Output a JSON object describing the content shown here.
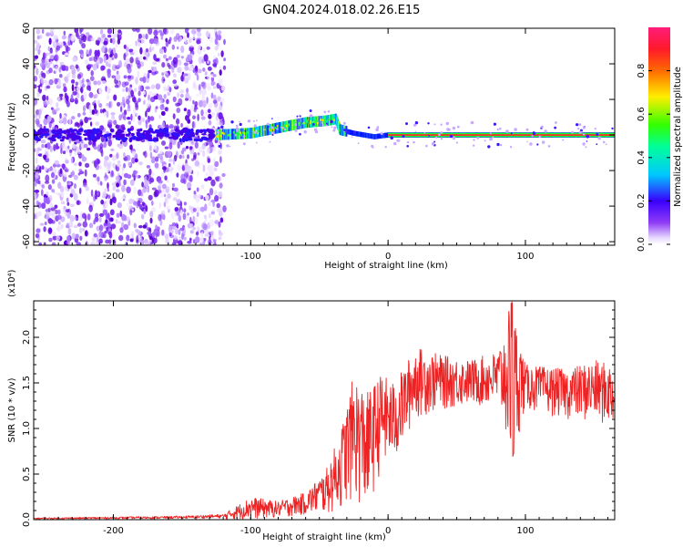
{
  "figure": {
    "title": "GN04.2024.018.02.26.E15"
  },
  "chart_data": [
    {
      "type": "heatmap",
      "xlabel": "Height of straight line (km)",
      "ylabel": "Frequency (Hz)",
      "xlim": [
        -258,
        165
      ],
      "ylim": [
        -62,
        60
      ],
      "xticks": [
        -200,
        -100,
        0,
        100
      ],
      "yticks": [
        -60,
        -40,
        -20,
        0,
        20,
        40,
        60
      ],
      "colorbar": {
        "label": "Normalized spectral amplitude",
        "range": [
          0,
          1
        ],
        "ticks": [
          0.0,
          0.2,
          0.4,
          0.6,
          0.8
        ],
        "colormap": "rainbow (purple → blue → cyan → green → yellow → red → magenta)"
      },
      "noise_region_x": [
        -258,
        -125
      ],
      "signal_track": [
        {
          "x": -125,
          "y": 0
        },
        {
          "x": -100,
          "y": 1
        },
        {
          "x": -80,
          "y": 4
        },
        {
          "x": -60,
          "y": 7
        },
        {
          "x": -45,
          "y": 8
        },
        {
          "x": -38,
          "y": 9
        },
        {
          "x": -35,
          "y": 3
        },
        {
          "x": -25,
          "y": 1
        },
        {
          "x": -10,
          "y": -1
        },
        {
          "x": 0,
          "y": 0
        },
        {
          "x": 165,
          "y": 0
        }
      ],
      "grid": false
    },
    {
      "type": "line",
      "xlabel": "Height of straight line (km)",
      "ylabel": "SNR (10 * v/v)",
      "y_multiplier": "(x10⁴)",
      "xlim": [
        -258,
        165
      ],
      "ylim": [
        0,
        2.4
      ],
      "xticks": [
        -200,
        -100,
        0,
        100
      ],
      "yticks": [
        0.0,
        0.5,
        1.0,
        1.5,
        2.0
      ],
      "color": "#ee2222",
      "envelope": [
        {
          "x": -258,
          "lo": 0.0,
          "hi": 0.02
        },
        {
          "x": -200,
          "lo": 0.0,
          "hi": 0.03
        },
        {
          "x": -150,
          "lo": 0.0,
          "hi": 0.04
        },
        {
          "x": -120,
          "lo": 0.0,
          "hi": 0.06
        },
        {
          "x": -100,
          "lo": 0.0,
          "hi": 0.25
        },
        {
          "x": -80,
          "lo": 0.02,
          "hi": 0.2
        },
        {
          "x": -60,
          "lo": 0.05,
          "hi": 0.3
        },
        {
          "x": -45,
          "lo": 0.05,
          "hi": 0.55
        },
        {
          "x": -35,
          "lo": 0.1,
          "hi": 0.95
        },
        {
          "x": -25,
          "lo": 0.2,
          "hi": 1.6
        },
        {
          "x": -15,
          "lo": 0.05,
          "hi": 1.4
        },
        {
          "x": -5,
          "lo": 0.55,
          "hi": 1.6
        },
        {
          "x": 5,
          "lo": 0.6,
          "hi": 1.5
        },
        {
          "x": 20,
          "lo": 1.1,
          "hi": 1.9
        },
        {
          "x": 40,
          "lo": 1.2,
          "hi": 1.8
        },
        {
          "x": 60,
          "lo": 1.25,
          "hi": 1.75
        },
        {
          "x": 80,
          "lo": 1.2,
          "hi": 1.85
        },
        {
          "x": 90,
          "lo": 0.65,
          "hi": 2.4
        },
        {
          "x": 100,
          "lo": 1.2,
          "hi": 1.7
        },
        {
          "x": 130,
          "lo": 1.1,
          "hi": 1.65
        },
        {
          "x": 150,
          "lo": 1.05,
          "hi": 1.75
        },
        {
          "x": 165,
          "lo": 1.0,
          "hi": 1.7
        }
      ],
      "grid": false
    }
  ]
}
